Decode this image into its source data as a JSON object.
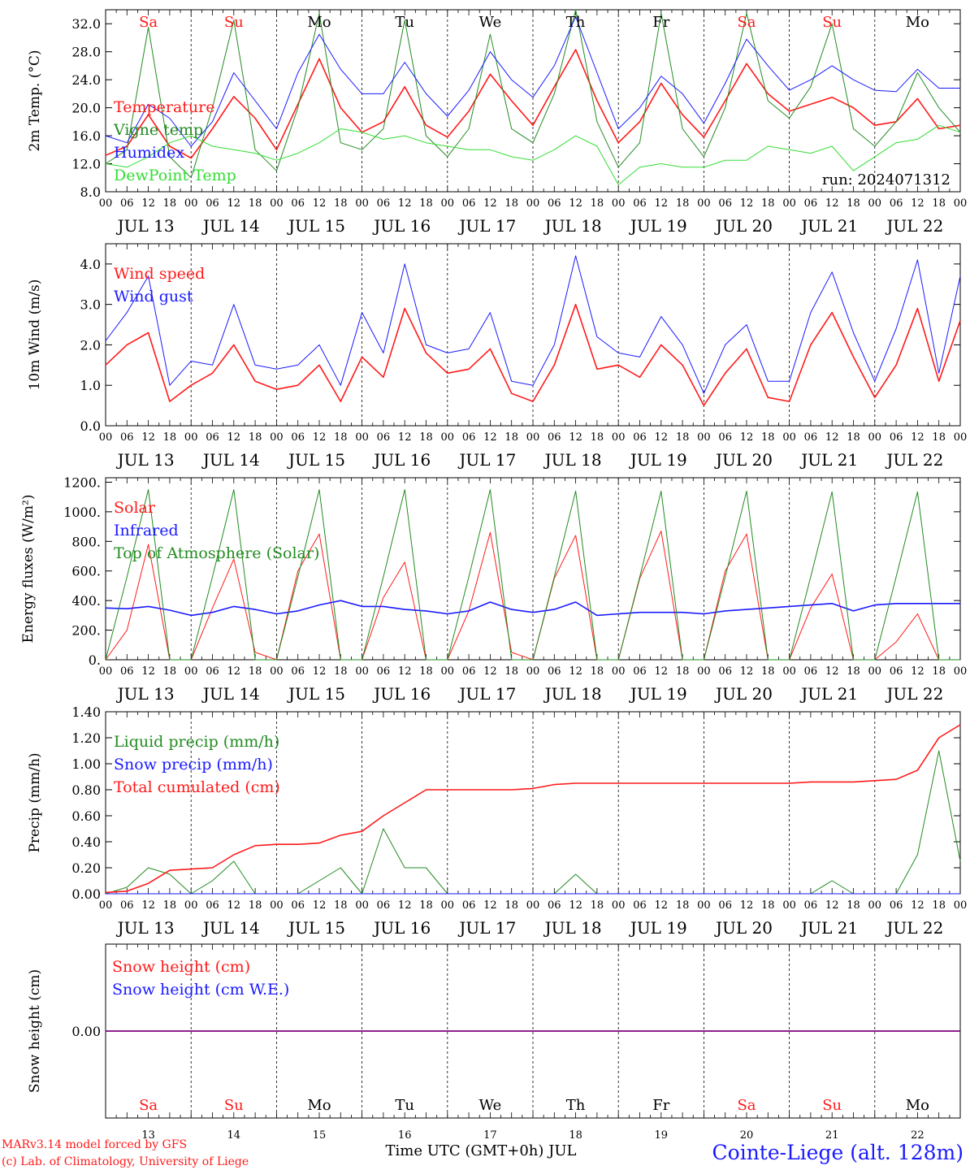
{
  "colors": {
    "red": "#ff1a1a",
    "green": "#228b22",
    "blue": "#1a1aff",
    "lightgreen": "#33dd33",
    "purple": "#800080",
    "black": "#000000"
  },
  "days": [
    "JUL 13",
    "JUL 14",
    "JUL 15",
    "JUL 16",
    "JUL 17",
    "JUL 18",
    "JUL 19",
    "JUL 20",
    "JUL 21",
    "JUL 22"
  ],
  "weekdays": [
    "Sa",
    "Su",
    "Mo",
    "Tu",
    "We",
    "Th",
    "Fr",
    "Sa",
    "Su",
    "Mo"
  ],
  "weekday_colors": [
    "#ff1a1a",
    "#ff1a1a",
    "#000000",
    "#000000",
    "#000000",
    "#000000",
    "#000000",
    "#ff1a1a",
    "#ff1a1a",
    "#000000"
  ],
  "day_numbers": [
    "13",
    "14",
    "15",
    "16",
    "17",
    "18",
    "19",
    "20",
    "21",
    "22"
  ],
  "hour_ticks": [
    "00",
    "06",
    "12",
    "18"
  ],
  "run_label": "run: 2024071312",
  "xlabel": "Time UTC (GMT+0h) JUL",
  "footer": {
    "line1": "MARv3.14 model forced by GFS",
    "line2": "(c) Lab. of Climatology, University of Liege",
    "station": "Cointe-Liege (alt. 128m)"
  },
  "chart_data": [
    {
      "type": "line",
      "ylabel": "2m Temp. (°C)",
      "ylim": [
        8,
        34
      ],
      "yticks": [
        "8.0",
        "12.0",
        "16.0",
        "20.0",
        "24.0",
        "28.0",
        "32.0"
      ],
      "x_hours": [
        0,
        6,
        12,
        18,
        24,
        30,
        36,
        42,
        48,
        54,
        60,
        66,
        72,
        78,
        84,
        90,
        96,
        102,
        108,
        114,
        120,
        126,
        132,
        138,
        144,
        150,
        156,
        162,
        168,
        174,
        180,
        186,
        192,
        198,
        204,
        210,
        216,
        222,
        228,
        234,
        240
      ],
      "series": [
        {
          "name": "Temperature",
          "color": "#ff1a1a",
          "values": [
            13.2,
            14.5,
            19,
            14.5,
            12.8,
            17,
            21.6,
            18.5,
            14,
            20.5,
            27,
            20,
            16.5,
            18,
            23,
            17.5,
            15.8,
            19.5,
            24.8,
            21,
            17.5,
            23,
            28.3,
            21,
            15,
            18,
            23.5,
            19,
            15.8,
            21,
            26.3,
            22,
            19.5,
            20.5,
            21.5,
            20,
            17.5,
            18,
            21.3,
            17,
            17.5
          ]
        },
        {
          "name": "Vigne temp",
          "color": "#228b22",
          "values": [
            12,
            14,
            31.5,
            13,
            10,
            20,
            32.5,
            14,
            11,
            20,
            33.5,
            15,
            14,
            17,
            32.5,
            16,
            13,
            17,
            30.5,
            17,
            15,
            22,
            34,
            18,
            11.5,
            15,
            33.5,
            17,
            13,
            20,
            33.5,
            21,
            18.5,
            23,
            32,
            17,
            14.5,
            18,
            25,
            20,
            16.5
          ]
        },
        {
          "name": "Humidex",
          "color": "#1a1aff",
          "values": [
            16,
            15,
            20.5,
            18.5,
            14.5,
            18,
            25,
            21,
            17,
            25,
            30.5,
            25.5,
            22,
            22,
            26.5,
            22,
            18.8,
            22.5,
            28,
            24,
            21.5,
            26,
            33,
            25,
            17,
            20,
            24.5,
            22,
            17.8,
            23.5,
            29.8,
            26,
            22.5,
            24,
            26,
            24,
            22.5,
            22.3,
            25.5,
            22.8,
            22.8
          ]
        },
        {
          "name": "DewPoint Temp",
          "color": "#33dd33",
          "values": [
            12,
            11.5,
            13,
            15,
            16,
            14.5,
            14,
            13.5,
            12.5,
            13.5,
            15,
            17,
            16.5,
            15.5,
            16,
            15,
            14.5,
            14,
            14,
            13,
            12.5,
            14,
            16,
            14.5,
            9,
            11.5,
            12,
            11.5,
            11.5,
            12.5,
            12.5,
            14.5,
            14,
            13.5,
            14.5,
            11,
            13,
            15,
            15.5,
            17.5,
            16.5
          ]
        }
      ]
    },
    {
      "type": "line",
      "ylabel": "10m Wind (m/s)",
      "ylim": [
        0,
        4.5
      ],
      "yticks": [
        "0.0",
        "1.0",
        "2.0",
        "3.0",
        "4.0"
      ],
      "x_hours": [
        0,
        6,
        12,
        18,
        24,
        30,
        36,
        42,
        48,
        54,
        60,
        66,
        72,
        78,
        84,
        90,
        96,
        102,
        108,
        114,
        120,
        126,
        132,
        138,
        144,
        150,
        156,
        162,
        168,
        174,
        180,
        186,
        192,
        198,
        204,
        210,
        216,
        222,
        228,
        234,
        240
      ],
      "series": [
        {
          "name": "Wind speed",
          "color": "#ff1a1a",
          "values": [
            1.5,
            2,
            2.3,
            0.6,
            1,
            1.3,
            2,
            1.1,
            0.9,
            1,
            1.5,
            0.6,
            1.7,
            1.2,
            2.9,
            1.8,
            1.3,
            1.4,
            1.9,
            0.8,
            0.6,
            1.5,
            3,
            1.4,
            1.5,
            1.2,
            2,
            1.5,
            0.5,
            1.3,
            1.9,
            0.7,
            0.6,
            2,
            2.8,
            1.7,
            0.7,
            1.5,
            2.9,
            1.1,
            2.6
          ]
        },
        {
          "name": "Wind gust",
          "color": "#1a1aff",
          "values": [
            2.1,
            2.8,
            3.7,
            1,
            1.6,
            1.5,
            3,
            1.5,
            1.4,
            1.5,
            2,
            1,
            2.8,
            1.8,
            4,
            2,
            1.8,
            1.9,
            2.8,
            1.1,
            1,
            2,
            4.2,
            2.2,
            1.8,
            1.7,
            2.7,
            2,
            0.8,
            2,
            2.5,
            1.1,
            1.1,
            2.8,
            3.8,
            2.3,
            1.1,
            2.4,
            4.1,
            1.3,
            3.7
          ]
        }
      ]
    },
    {
      "type": "line",
      "ylabel": "Energy fluxes (W/m²)",
      "ylim": [
        0,
        1230
      ],
      "yticks": [
        "0.",
        "200.",
        "400.",
        "600.",
        "800.",
        "1000.",
        "1200."
      ],
      "x_hours": [
        0,
        6,
        12,
        18,
        24,
        30,
        36,
        42,
        48,
        54,
        60,
        66,
        72,
        78,
        84,
        90,
        96,
        102,
        108,
        114,
        120,
        126,
        132,
        138,
        144,
        150,
        156,
        162,
        168,
        174,
        180,
        186,
        192,
        198,
        204,
        210,
        216,
        222,
        228,
        234,
        240
      ],
      "series": [
        {
          "name": "Solar",
          "color": "#ff1a1a",
          "values": [
            0,
            200,
            780,
            0,
            0,
            350,
            680,
            50,
            0,
            600,
            850,
            0,
            0,
            420,
            660,
            0,
            0,
            330,
            860,
            50,
            0,
            550,
            840,
            0,
            0,
            550,
            870,
            0,
            0,
            600,
            850,
            0,
            0,
            350,
            580,
            0,
            0,
            120,
            310,
            0,
            0
          ]
        },
        {
          "name": "Infrared",
          "color": "#1a1aff",
          "values": [
            350,
            345,
            360,
            335,
            300,
            320,
            360,
            340,
            310,
            330,
            370,
            400,
            360,
            360,
            340,
            330,
            310,
            330,
            390,
            340,
            320,
            340,
            390,
            300,
            310,
            320,
            320,
            320,
            310,
            330,
            340,
            350,
            360,
            370,
            380,
            330,
            370,
            380,
            380,
            380,
            380
          ]
        },
        {
          "name": "Top of Atmosphere (Solar)",
          "color": "#228b22",
          "values": [
            0,
            560,
            1150,
            0,
            0,
            560,
            1150,
            0,
            0,
            560,
            1150,
            0,
            0,
            560,
            1150,
            0,
            0,
            560,
            1150,
            0,
            0,
            560,
            1140,
            0,
            0,
            560,
            1140,
            0,
            0,
            560,
            1140,
            0,
            0,
            560,
            1135,
            0,
            0,
            560,
            1135,
            0,
            0
          ]
        }
      ]
    },
    {
      "type": "line",
      "ylabel": "Precip (mm/h)",
      "ylim": [
        0,
        1.4
      ],
      "yticks": [
        "0.00",
        "0.20",
        "0.40",
        "0.60",
        "0.80",
        "1.00",
        "1.20",
        "1.40"
      ],
      "x_hours": [
        0,
        6,
        12,
        18,
        24,
        30,
        36,
        42,
        48,
        54,
        60,
        66,
        72,
        78,
        84,
        90,
        96,
        102,
        108,
        114,
        120,
        126,
        132,
        138,
        144,
        150,
        156,
        162,
        168,
        174,
        180,
        186,
        192,
        198,
        204,
        210,
        216,
        222,
        228,
        234,
        240
      ],
      "series": [
        {
          "name": "Liquid precip (mm/h)",
          "color": "#228b22",
          "values": [
            0,
            0.05,
            0.2,
            0.15,
            0,
            0.1,
            0.25,
            0,
            0,
            0,
            0.1,
            0.2,
            0,
            0.5,
            0.2,
            0.2,
            0,
            0,
            0,
            0,
            0,
            0,
            0.15,
            0,
            0,
            0,
            0,
            0,
            0,
            0,
            0,
            0,
            0,
            0,
            0.1,
            0,
            0,
            0,
            0.3,
            1.1,
            0.25
          ]
        },
        {
          "name": "Snow precip (mm/h)",
          "color": "#1a1aff",
          "values": [
            0,
            0,
            0,
            0,
            0,
            0,
            0,
            0,
            0,
            0,
            0,
            0,
            0,
            0,
            0,
            0,
            0,
            0,
            0,
            0,
            0,
            0,
            0,
            0,
            0,
            0,
            0,
            0,
            0,
            0,
            0,
            0,
            0,
            0,
            0,
            0,
            0,
            0,
            0,
            0,
            0
          ]
        },
        {
          "name": "Total cumulated (cm)",
          "color": "#ff1a1a",
          "values": [
            0.01,
            0.02,
            0.08,
            0.18,
            0.19,
            0.2,
            0.3,
            0.37,
            0.38,
            0.38,
            0.39,
            0.45,
            0.48,
            0.6,
            0.7,
            0.8,
            0.8,
            0.8,
            0.8,
            0.8,
            0.81,
            0.84,
            0.85,
            0.85,
            0.85,
            0.85,
            0.85,
            0.85,
            0.85,
            0.85,
            0.85,
            0.85,
            0.85,
            0.86,
            0.86,
            0.86,
            0.87,
            0.88,
            0.95,
            1.2,
            1.3
          ]
        }
      ]
    },
    {
      "type": "line",
      "ylabel": "Snow height (cm)",
      "ylim": [
        -1,
        1
      ],
      "yticks": [
        "0.00"
      ],
      "x_hours": [
        0,
        240
      ],
      "series": [
        {
          "name": "Snow height (cm)",
          "color": "#ff1a1a",
          "values": [
            0,
            0
          ]
        },
        {
          "name": "Snow height (cm W.E.)",
          "color": "#1a1aff",
          "values": [
            0,
            0
          ]
        }
      ]
    }
  ]
}
